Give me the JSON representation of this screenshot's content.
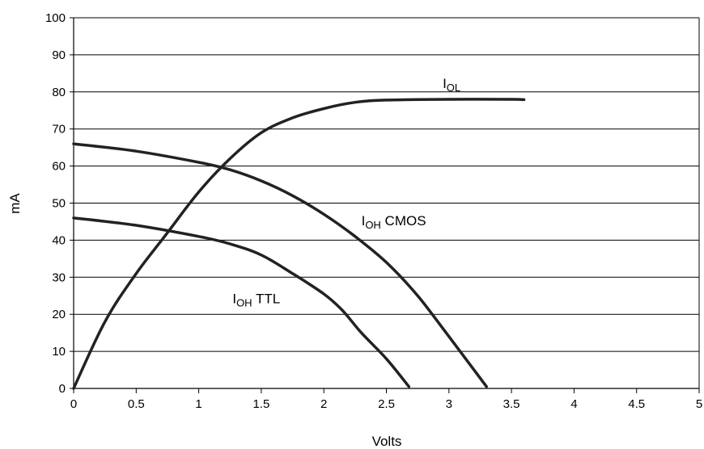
{
  "chart_data": {
    "type": "line",
    "xlabel": "Volts",
    "ylabel": "mA",
    "xlim": [
      0,
      5
    ],
    "ylim": [
      0,
      100
    ],
    "x_ticks": [
      0,
      0.5,
      1,
      1.5,
      2,
      2.5,
      3,
      3.5,
      4,
      4.5,
      5
    ],
    "y_ticks": [
      0,
      10,
      20,
      30,
      40,
      50,
      60,
      70,
      80,
      90,
      100
    ],
    "grid": "horizontal",
    "series": [
      {
        "name": "IOL",
        "label_main": "I",
        "label_sub": "OL",
        "label_suffix": "",
        "label_at": [
          2.95,
          81
        ],
        "color": "#222222",
        "points": [
          [
            0,
            0
          ],
          [
            0.25,
            18
          ],
          [
            0.5,
            31
          ],
          [
            0.75,
            42
          ],
          [
            1.0,
            53
          ],
          [
            1.25,
            62
          ],
          [
            1.5,
            69
          ],
          [
            1.75,
            73
          ],
          [
            2.0,
            75.5
          ],
          [
            2.25,
            77.2
          ],
          [
            2.5,
            77.8
          ],
          [
            3.0,
            78
          ],
          [
            3.5,
            78
          ],
          [
            3.6,
            77.9
          ]
        ]
      },
      {
        "name": "IOH CMOS",
        "label_main": "I",
        "label_sub": "OH",
        "label_suffix": " CMOS",
        "label_at": [
          2.3,
          44
        ],
        "color": "#222222",
        "points": [
          [
            0,
            66
          ],
          [
            0.5,
            64
          ],
          [
            1.0,
            61
          ],
          [
            1.25,
            59
          ],
          [
            1.5,
            56
          ],
          [
            1.75,
            52
          ],
          [
            2.0,
            47
          ],
          [
            2.25,
            41
          ],
          [
            2.5,
            34
          ],
          [
            2.75,
            25
          ],
          [
            3.0,
            14
          ],
          [
            3.3,
            0.5
          ]
        ]
      },
      {
        "name": "IOH TTL",
        "label_main": "I",
        "label_sub": "OH",
        "label_suffix": " TTL",
        "label_at": [
          1.27,
          23
        ],
        "color": "#222222",
        "points": [
          [
            0,
            46
          ],
          [
            0.5,
            44
          ],
          [
            1.0,
            41
          ],
          [
            1.25,
            39
          ],
          [
            1.5,
            36
          ],
          [
            1.75,
            31
          ],
          [
            2.0,
            25.5
          ],
          [
            2.15,
            21
          ],
          [
            2.3,
            15
          ],
          [
            2.5,
            8
          ],
          [
            2.68,
            0.5
          ]
        ]
      }
    ]
  }
}
